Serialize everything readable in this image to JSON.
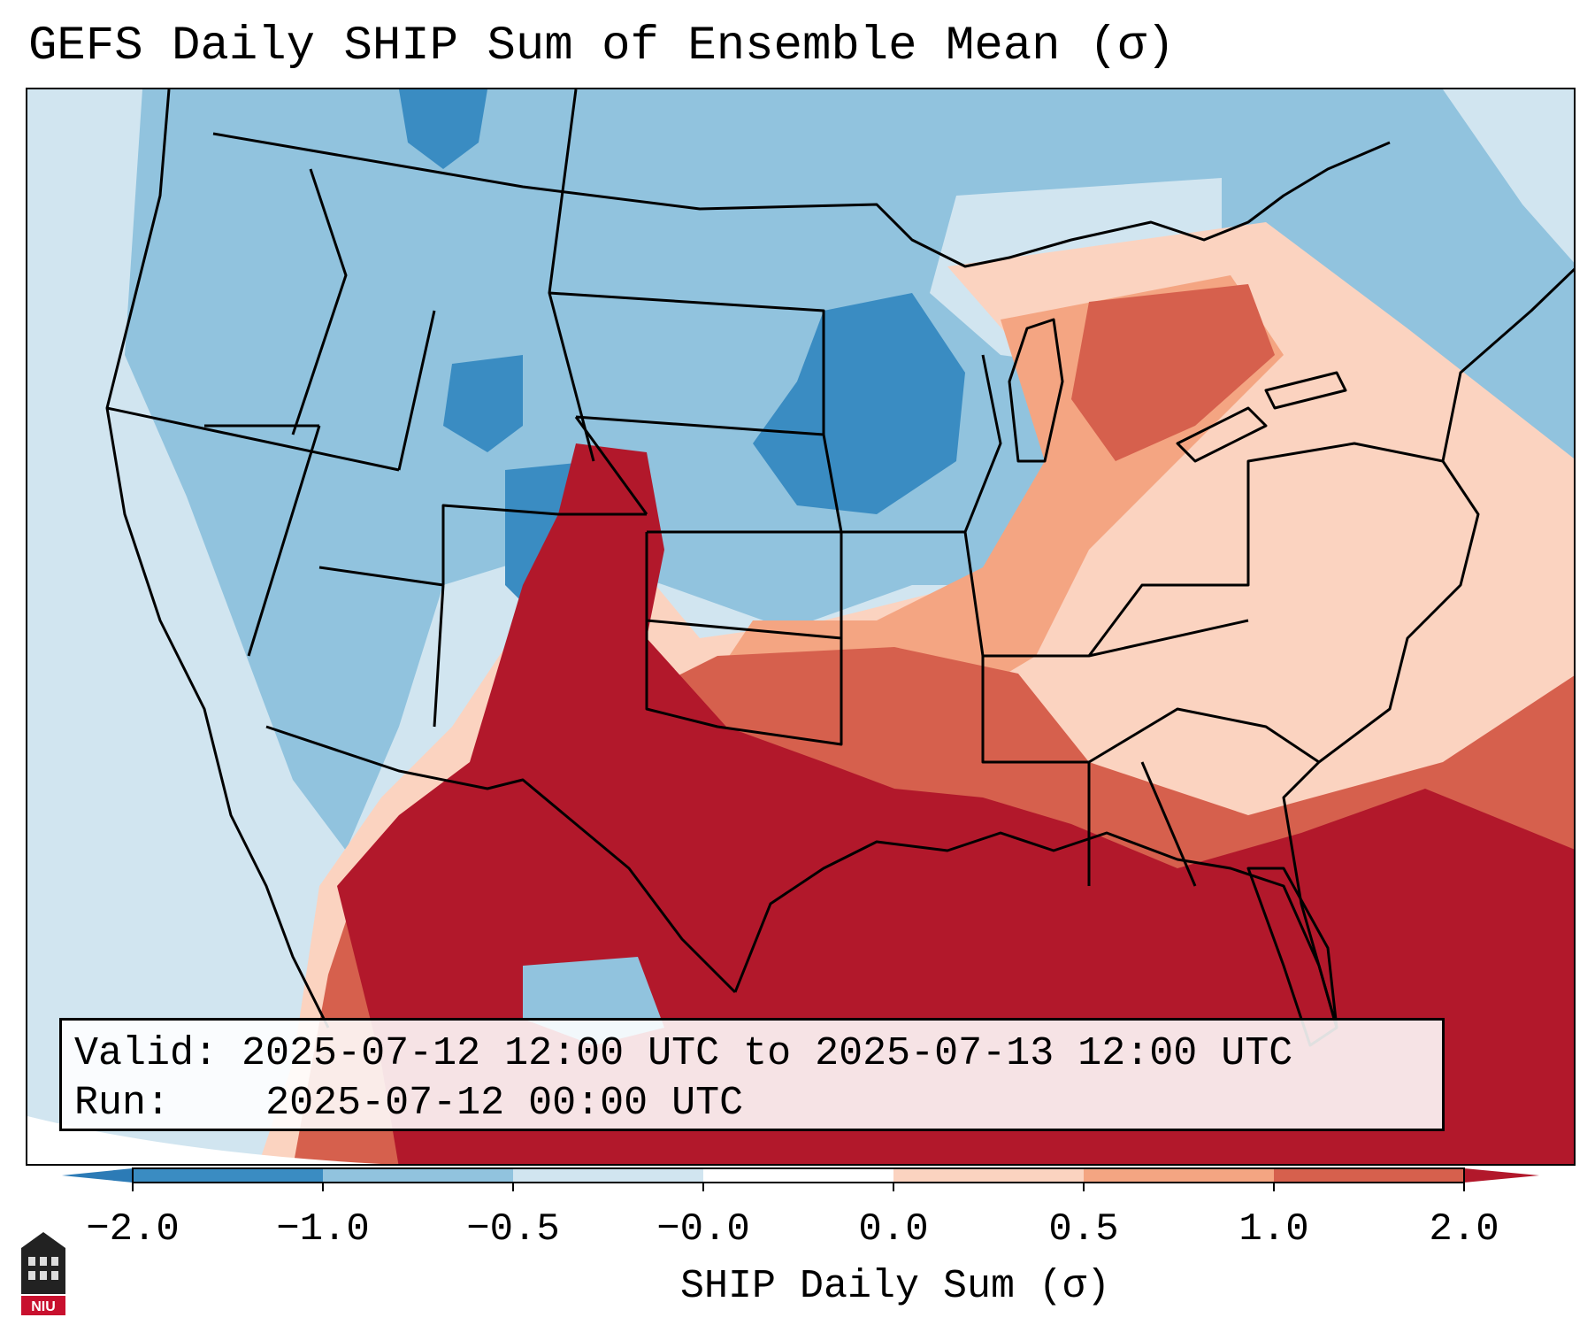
{
  "title": "GEFS Daily SHIP Sum of Ensemble Mean (σ)",
  "info": {
    "valid_label": "Valid:",
    "valid_value": "2025-07-12 12:00 UTC to 2025-07-13 12:00 UTC",
    "run_label": "Run:",
    "run_value": "2025-07-12 00:00 UTC"
  },
  "colorbar": {
    "label": "SHIP Daily Sum (σ)",
    "ticks": [
      "−2.0",
      "−1.0",
      "−0.5",
      "−0.0",
      "0.0",
      "0.5",
      "1.0",
      "2.0"
    ],
    "colors": [
      "#3a8cc2",
      "#91c3de",
      "#d1e5f0",
      "#ffffff",
      "#fbd3c0",
      "#f4a582",
      "#d6604d",
      "#b2182b"
    ],
    "extend": "both"
  },
  "map": {
    "region": "Contiguous United States",
    "colors": {
      "strong_negative": "#3a8cc2",
      "negative": "#91c3de",
      "weak_negative": "#d1e5f0",
      "weak_positive": "#fbd3c0",
      "positive": "#f4a582",
      "strong_positive": "#d6604d",
      "extreme_positive": "#b2182b"
    }
  },
  "logo": {
    "text": "NIU"
  }
}
